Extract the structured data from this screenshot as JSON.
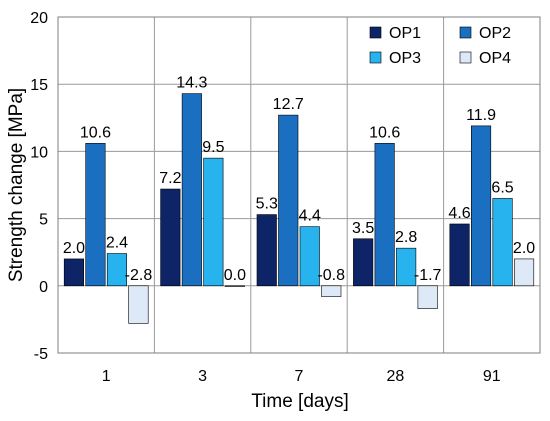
{
  "chart_data": {
    "type": "bar",
    "categories": [
      "1",
      "3",
      "7",
      "28",
      "91"
    ],
    "series": [
      {
        "name": "OP1",
        "color": "#0d2566",
        "values": [
          2.0,
          7.2,
          5.3,
          3.5,
          4.6
        ],
        "labels": [
          "2.0",
          "7.2",
          "5.3",
          "3.5",
          "4.6"
        ]
      },
      {
        "name": "OP2",
        "color": "#1b6fc0",
        "values": [
          10.6,
          14.3,
          12.7,
          10.6,
          11.9
        ],
        "labels": [
          "10.6",
          "14.3",
          "12.7",
          "10.6",
          "11.9"
        ]
      },
      {
        "name": "OP3",
        "color": "#27b4ee",
        "values": [
          2.4,
          9.5,
          4.4,
          2.8,
          6.5
        ],
        "labels": [
          "2.4",
          "9.5",
          "4.4",
          "2.8",
          "6.5"
        ]
      },
      {
        "name": "OP4",
        "color": "#dde9f7",
        "values": [
          -2.8,
          0.0,
          -0.8,
          -1.7,
          2.0
        ],
        "labels": [
          "-2.8",
          "0.0",
          "-0.8",
          "-1.7",
          "2.0"
        ]
      }
    ],
    "xlabel": "Time [days]",
    "ylabel": "Strength change [MPa]",
    "ylim": [
      -5,
      20
    ],
    "yticks": [
      "-5",
      "0",
      "5",
      "10",
      "15",
      "20"
    ],
    "grid": true,
    "legend_position": "top-right"
  }
}
